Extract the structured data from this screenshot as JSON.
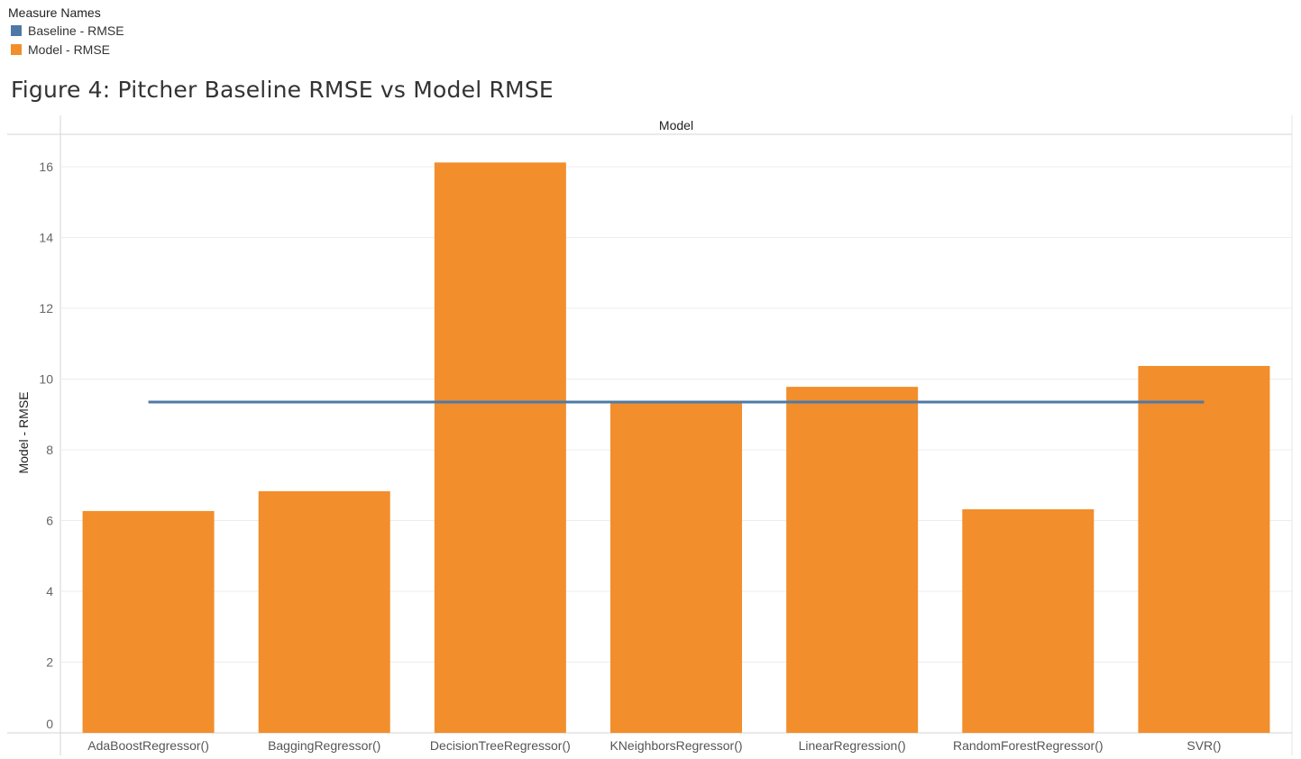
{
  "legend": {
    "title": "Measure Names",
    "items": [
      {
        "label": "Baseline - RMSE",
        "color": "#4e79a7"
      },
      {
        "label": "Model - RMSE",
        "color": "#f28e2b"
      }
    ]
  },
  "figure_title": "Figure 4: Pitcher Baseline RMSE vs Model RMSE",
  "chart_data": {
    "type": "bar",
    "title": "Figure 4: Pitcher Baseline RMSE vs Model RMSE",
    "header": "Model",
    "xlabel": "Model",
    "ylabel": "Model - RMSE",
    "ylim": [
      0,
      16
    ],
    "yticks": [
      0,
      2,
      4,
      6,
      8,
      10,
      12,
      14,
      16
    ],
    "grid": true,
    "categories": [
      "AdaBoostRegressor()",
      "BaggingRegressor()",
      "DecisionTreeRegressor()",
      "KNeighborsRegressor()",
      "LinearRegression()",
      "RandomForestRegressor()",
      "SVR()"
    ],
    "series": [
      {
        "name": "Model - RMSE",
        "type": "bar",
        "color": "#f28e2b",
        "values": [
          6.27,
          6.83,
          16.12,
          9.32,
          9.78,
          6.32,
          10.37
        ]
      },
      {
        "name": "Baseline - RMSE",
        "type": "line",
        "color": "#4e79a7",
        "values": [
          9.35,
          9.35,
          9.35,
          9.35,
          9.35,
          9.35,
          9.35
        ]
      }
    ]
  }
}
